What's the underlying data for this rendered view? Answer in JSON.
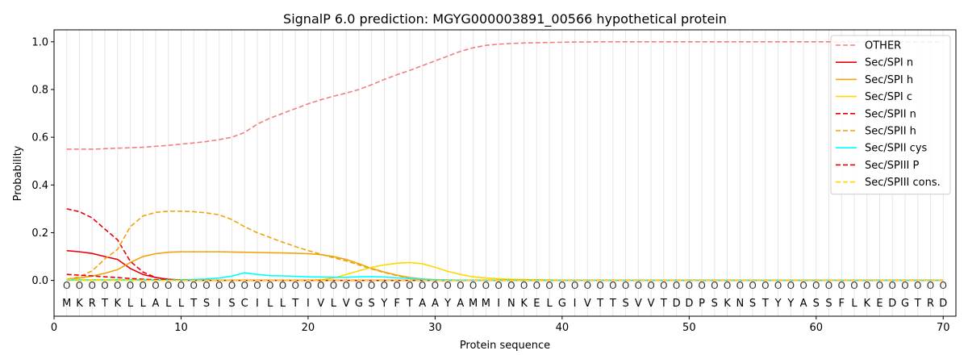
{
  "chart_data": {
    "type": "line",
    "title": "SignalP 6.0 prediction: MGYG000003891_00566 hypothetical protein",
    "xlabel": "Protein sequence",
    "ylabel": "Probability",
    "xlim": [
      0,
      71
    ],
    "ylim": [
      -0.15,
      1.05
    ],
    "x_ticks": [
      0,
      10,
      20,
      30,
      40,
      50,
      60,
      70
    ],
    "y_ticks": [
      "0.0",
      "0.2",
      "0.4",
      "0.6",
      "0.8",
      "1.0"
    ],
    "y_tick_values": [
      0,
      0.2,
      0.4,
      0.6,
      0.8,
      1.0
    ],
    "sequence": [
      "M",
      "K",
      "R",
      "T",
      "K",
      "L",
      "L",
      "A",
      "L",
      "L",
      "T",
      "S",
      "I",
      "S",
      "C",
      "I",
      "L",
      "L",
      "T",
      "I",
      "V",
      "L",
      "V",
      "G",
      "S",
      "Y",
      "F",
      "T",
      "A",
      "A",
      "Y",
      "A",
      "M",
      "M",
      "I",
      "N",
      "K",
      "E",
      "L",
      "G",
      "I",
      "V",
      "T",
      "T",
      "S",
      "V",
      "V",
      "T",
      "D",
      "D",
      "P",
      "S",
      "K",
      "N",
      "S",
      "T",
      "Y",
      "Y",
      "A",
      "S",
      "S",
      "F",
      "L",
      "K",
      "E",
      "D",
      "G",
      "T",
      "R",
      "D"
    ],
    "region_label": "O",
    "legend_position": "top-right",
    "series": [
      {
        "name": "OTHER",
        "color": "#f08080",
        "dash": true,
        "values": [
          0.55,
          0.55,
          0.55,
          0.552,
          0.554,
          0.556,
          0.558,
          0.562,
          0.566,
          0.571,
          0.576,
          0.582,
          0.59,
          0.6,
          0.62,
          0.655,
          0.68,
          0.7,
          0.72,
          0.74,
          0.757,
          0.772,
          0.785,
          0.8,
          0.82,
          0.842,
          0.862,
          0.88,
          0.9,
          0.92,
          0.94,
          0.96,
          0.975,
          0.985,
          0.99,
          0.993,
          0.995,
          0.996,
          0.997,
          0.998,
          0.999,
          0.999,
          1.0,
          1.0,
          1.0,
          1.0,
          1.0,
          1.0,
          1.0,
          1.0,
          1.0,
          1.0,
          1.0,
          1.0,
          1.0,
          1.0,
          1.0,
          1.0,
          1.0,
          1.0,
          1.0,
          1.0,
          1.0,
          1.0,
          1.0,
          1.0,
          1.0,
          1.0,
          1.0,
          1.0
        ]
      },
      {
        "name": "Sec/SPI n",
        "color": "#e8000b",
        "dash": false,
        "values": [
          0.125,
          0.12,
          0.113,
          0.1,
          0.088,
          0.05,
          0.025,
          0.012,
          0.005,
          0.002,
          0.001,
          0,
          0,
          0,
          0,
          0,
          0,
          0,
          0,
          0,
          0,
          0,
          0,
          0,
          0,
          0,
          0,
          0,
          0,
          0,
          0,
          0,
          0,
          0,
          0,
          0,
          0,
          0,
          0,
          0,
          0,
          0,
          0,
          0,
          0,
          0,
          0,
          0,
          0,
          0,
          0,
          0,
          0,
          0,
          0,
          0,
          0,
          0,
          0,
          0,
          0,
          0,
          0,
          0,
          0,
          0,
          0,
          0,
          0,
          0
        ]
      },
      {
        "name": "Sec/SPI h",
        "color": "#f0a30a",
        "dash": false,
        "values": [
          0.005,
          0.01,
          0.018,
          0.03,
          0.045,
          0.075,
          0.1,
          0.112,
          0.118,
          0.12,
          0.12,
          0.12,
          0.12,
          0.119,
          0.118,
          0.117,
          0.116,
          0.115,
          0.114,
          0.112,
          0.108,
          0.1,
          0.088,
          0.07,
          0.05,
          0.035,
          0.022,
          0.012,
          0.006,
          0.003,
          0.001,
          0,
          0,
          0,
          0,
          0,
          0,
          0,
          0,
          0,
          0,
          0,
          0,
          0,
          0,
          0,
          0,
          0,
          0,
          0,
          0,
          0,
          0,
          0,
          0,
          0,
          0,
          0,
          0,
          0,
          0,
          0,
          0,
          0,
          0,
          0,
          0,
          0,
          0,
          0
        ]
      },
      {
        "name": "Sec/SPI c",
        "color": "#ffd700",
        "dash": false,
        "values": [
          0,
          0,
          0,
          0,
          0,
          0,
          0,
          0,
          0,
          0,
          0,
          0,
          0,
          0,
          0,
          0,
          0,
          0,
          0,
          0,
          0.003,
          0.01,
          0.025,
          0.04,
          0.055,
          0.065,
          0.072,
          0.075,
          0.07,
          0.055,
          0.038,
          0.025,
          0.015,
          0.01,
          0.007,
          0.005,
          0.004,
          0.003,
          0.002,
          0.001,
          0,
          0,
          0,
          0,
          0,
          0,
          0,
          0,
          0,
          0,
          0,
          0,
          0,
          0,
          0,
          0,
          0,
          0,
          0,
          0,
          0,
          0,
          0,
          0,
          0,
          0,
          0,
          0,
          0,
          0
        ]
      },
      {
        "name": "Sec/SPII n",
        "color": "#e8000b",
        "dash": true,
        "values": [
          0.3,
          0.288,
          0.262,
          0.215,
          0.17,
          0.08,
          0.035,
          0.012,
          0.004,
          0.001,
          0,
          0,
          0,
          0,
          0,
          0,
          0,
          0,
          0,
          0,
          0,
          0,
          0,
          0,
          0,
          0,
          0,
          0,
          0,
          0,
          0,
          0,
          0,
          0,
          0,
          0,
          0,
          0,
          0,
          0,
          0,
          0,
          0,
          0,
          0,
          0,
          0,
          0,
          0,
          0,
          0,
          0,
          0,
          0,
          0,
          0,
          0,
          0,
          0,
          0,
          0,
          0,
          0,
          0,
          0,
          0,
          0,
          0,
          0,
          0
        ]
      },
      {
        "name": "Sec/SPII h",
        "color": "#f0a30a",
        "dash": true,
        "values": [
          0.005,
          0.015,
          0.04,
          0.09,
          0.13,
          0.225,
          0.27,
          0.285,
          0.29,
          0.29,
          0.288,
          0.283,
          0.275,
          0.255,
          0.225,
          0.2,
          0.18,
          0.16,
          0.142,
          0.125,
          0.11,
          0.095,
          0.082,
          0.065,
          0.048,
          0.033,
          0.02,
          0.01,
          0.005,
          0.002,
          0.001,
          0,
          0,
          0,
          0,
          0,
          0,
          0,
          0,
          0,
          0,
          0,
          0,
          0,
          0,
          0,
          0,
          0,
          0,
          0,
          0,
          0,
          0,
          0,
          0,
          0,
          0,
          0,
          0,
          0,
          0,
          0,
          0,
          0,
          0,
          0,
          0,
          0,
          0,
          0
        ]
      },
      {
        "name": "Sec/SPII cys",
        "color": "#00ffff",
        "dash": false,
        "values": [
          0.001,
          0.002,
          0.003,
          0.003,
          0.003,
          0.003,
          0.002,
          0.002,
          0.002,
          0.003,
          0.004,
          0.006,
          0.01,
          0.018,
          0.032,
          0.025,
          0.02,
          0.019,
          0.017,
          0.015,
          0.014,
          0.013,
          0.013,
          0.015,
          0.016,
          0.014,
          0.011,
          0.008,
          0.005,
          0.003,
          0.002,
          0.001,
          0,
          0,
          0,
          0,
          0,
          0,
          0,
          0,
          0,
          0,
          0,
          0,
          0,
          0,
          0,
          0,
          0,
          0,
          0,
          0,
          0,
          0,
          0,
          0,
          0,
          0,
          0,
          0,
          0,
          0,
          0,
          0,
          0,
          0,
          0,
          0,
          0,
          0
        ]
      },
      {
        "name": "Sec/SPIII P",
        "color": "#e8000b",
        "dash": true,
        "values": [
          0.025,
          0.022,
          0.019,
          0.015,
          0.012,
          0.008,
          0.005,
          0.003,
          0.002,
          0.001,
          0,
          0,
          0,
          0,
          0,
          0,
          0,
          0,
          0,
          0,
          0,
          0,
          0,
          0,
          0,
          0,
          0,
          0,
          0,
          0,
          0,
          0,
          0,
          0,
          0,
          0,
          0,
          0,
          0,
          0,
          0,
          0,
          0,
          0,
          0,
          0,
          0,
          0,
          0,
          0,
          0,
          0,
          0,
          0,
          0,
          0,
          0,
          0,
          0,
          0,
          0,
          0,
          0,
          0,
          0,
          0,
          0,
          0,
          0,
          0
        ]
      },
      {
        "name": "Sec/SPIII cons.",
        "color": "#ffd700",
        "dash": true,
        "values": [
          0.004,
          0.003,
          0.003,
          0.002,
          0.002,
          0.001,
          0.001,
          0,
          0,
          0,
          0,
          0,
          0,
          0,
          0,
          0,
          0,
          0,
          0,
          0,
          0,
          0,
          0,
          0,
          0,
          0,
          0,
          0,
          0,
          0,
          0,
          0,
          0,
          0,
          0,
          0,
          0,
          0,
          0,
          0,
          0,
          0,
          0,
          0,
          0,
          0,
          0,
          0,
          0,
          0,
          0,
          0,
          0,
          0,
          0,
          0,
          0,
          0,
          0,
          0,
          0,
          0,
          0,
          0,
          0,
          0,
          0,
          0,
          0,
          0
        ]
      }
    ]
  }
}
